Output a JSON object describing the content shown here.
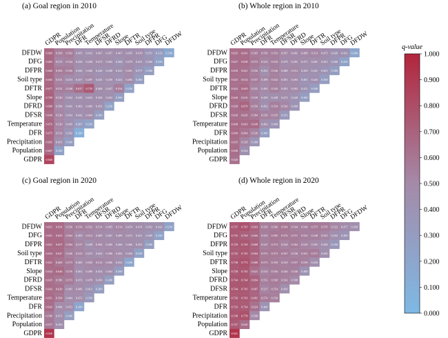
{
  "chart_data": {
    "type": "heatmap",
    "variables": [
      "GDPR",
      "Population",
      "Precipitation",
      "DFR",
      "Temperature",
      "DFSR",
      "DFRD",
      "Slope",
      "DFTR",
      "Soil type",
      "DFPR",
      "DFG",
      "DFDW"
    ],
    "legend": {
      "title": "q-value",
      "range": [
        0,
        1
      ],
      "ticks": [
        "0.000",
        "0.100",
        "0.200",
        "0.300",
        "0.400",
        "0.500",
        "0.600",
        "0.700",
        "0.800",
        "0.900",
        "1.000"
      ],
      "color_low": "#7db9e5",
      "color_mid": "#a58aa8",
      "color_high": "#b2253c",
      "placement": "right"
    },
    "panels": [
      {
        "title": "(a) Goal region in 2010",
        "matrix": [
          [
            0.84
          ],
          [
            0.667,
            0.25
          ],
          [
            0.665,
            0.451,
            0.3
          ],
          [
            0.675,
            0.513,
            0.392,
            0.1
          ],
          [
            0.676,
            0.52,
            0.445,
            0.307,
            0.25
          ],
          [
            0.64,
            0.52,
            0.454,
            0.442,
            0.464,
            0.3
          ],
          [
            0.68,
            0.506,
            0.441,
            0.463,
            0.469,
            0.452,
            0.25
          ],
          [
            0.7,
            0.52,
            0.454,
            0.445,
            0.454,
            0.456,
            0.452,
            0.3
          ],
          [
            0.677,
            0.552,
            0.548,
            0.637,
            0.735,
            0.468,
            0.457,
            0.554,
            0.25
          ],
          [
            0.665,
            0.531,
            0.474,
            0.457,
            0.497,
            0.433,
            0.459,
            0.421,
            0.494,
            0.3
          ],
          [
            0.66,
            0.565,
            0.556,
            0.45,
            0.468,
            0.426,
            0.438,
            0.441,
            0.491,
            0.377,
            0.3
          ],
          [
            0.665,
            0.513,
            0.534,
            0.456,
            0.458,
            0.473,
            0.465,
            0.406,
            0.479,
            0.431,
            0.4,
            0.25
          ],
          [
            0.669,
            0.56,
            0.563,
            0.455,
            0.452,
            0.467,
            0.457,
            0.467,
            0.455,
            0.47,
            0.371,
            0.313,
            0.18
          ]
        ]
      },
      {
        "title": "(b) Whole region in 2010",
        "matrix": [
          [
            0.62
          ],
          [
            0.638,
            0.434
          ],
          [
            0.635,
            0.528,
            0.388
          ],
          [
            0.649,
            0.604,
            0.536,
            0.3
          ],
          [
            0.648,
            0.643,
            0.649,
            0.462,
            0.4
          ],
          [
            0.63,
            0.62,
            0.584,
            0.539,
            0.535,
            0.351
          ],
          [
            0.63,
            0.679,
            0.55,
            0.452,
            0.554,
            0.52,
            0.4
          ],
          [
            0.64,
            0.616,
            0.539,
            0.458,
            0.448,
            0.472,
            0.42,
            0.3
          ],
          [
            0.624,
            0.649,
            0.531,
            0.492,
            0.545,
            0.492,
            0.492,
            0.411,
            0.3
          ],
          [
            0.625,
            0.614,
            0.557,
            0.499,
            0.542,
            0.491,
            0.493,
            0.401,
            0.445,
            0.3
          ],
          [
            0.63,
            0.621,
            0.556,
            0.452,
            0.546,
            0.488,
            0.512,
            0.45,
            0.441,
            0.401,
            0.3
          ],
          [
            0.627,
            0.638,
            0.573,
            0.523,
            0.543,
            0.479,
            0.491,
            0.471,
            0.461,
            0.451,
            0.4,
            0.25
          ],
          [
            0.635,
            0.641,
            0.565,
            0.556,
            0.553,
            0.507,
            0.491,
            0.499,
            0.514,
            0.475,
            0.426,
            0.431,
            0.2
          ]
        ]
      },
      {
        "title": "(c) Goal region in 2020",
        "matrix": [
          [
            0.92
          ],
          [
            0.577,
            0.45
          ],
          [
            0.58,
            0.471,
            0.3
          ],
          [
            0.642,
            0.484,
            0.472,
            0.2
          ],
          [
            0.651,
            0.594,
            0.464,
            0.472,
            0.35
          ],
          [
            0.642,
            0.62,
            0.491,
            0.486,
            0.413,
            0.3
          ],
          [
            0.635,
            0.586,
            0.573,
            0.473,
            0.478,
            0.45,
            0.3
          ],
          [
            0.634,
            0.646,
            0.576,
            0.461,
            0.49,
            0.454,
            0.464,
            0.3
          ],
          [
            0.651,
            0.6,
            0.573,
            0.485,
            0.502,
            0.513,
            0.496,
            0.452,
            0.2
          ],
          [
            0.654,
            0.647,
            0.546,
            0.523,
            0.475,
            0.462,
            0.496,
            0.482,
            0.456,
            0.25
          ],
          [
            0.651,
            0.657,
            0.584,
            0.517,
            0.448,
            0.494,
            0.485,
            0.466,
            0.466,
            0.451,
            0.3
          ],
          [
            0.651,
            0.655,
            0.564,
            0.493,
            0.514,
            0.489,
            0.467,
            0.489,
            0.472,
            0.451,
            0.409,
            0.25
          ],
          [
            0.651,
            0.654,
            0.556,
            0.556,
            0.532,
            0.514,
            0.495,
            0.514,
            0.474,
            0.474,
            0.452,
            0.423,
            0.25
          ]
        ]
      },
      {
        "title": "(d) Whole region in 2020",
        "matrix": [
          [
            0.921
          ],
          [
            0.727,
            0.64
          ],
          [
            0.748,
            0.778,
            0.5
          ],
          [
            0.733,
            0.734,
            0.624,
            0.4
          ],
          [
            0.736,
            0.743,
            0.681,
            0.574,
            0.55
          ],
          [
            0.744,
            0.745,
            0.687,
            0.527,
            0.554,
            0.45
          ],
          [
            0.744,
            0.744,
            0.694,
            0.552,
            0.568,
            0.542,
            0.5
          ],
          [
            0.728,
            0.745,
            0.621,
            0.533,
            0.556,
            0.546,
            0.546,
            0.4
          ],
          [
            0.738,
            0.773,
            0.68,
            0.573,
            0.559,
            0.539,
            0.557,
            0.539,
            0.45
          ],
          [
            0.725,
            0.745,
            0.694,
            0.575,
            0.573,
            0.567,
            0.536,
            0.561,
            0.571,
            0.45
          ],
          [
            0.729,
            0.749,
            0.688,
            0.547,
            0.574,
            0.528,
            0.564,
            0.529,
            0.505,
            0.458,
            0.35
          ],
          [
            0.735,
            0.704,
            0.666,
            0.553,
            0.585,
            0.576,
            0.571,
            0.552,
            0.548,
            0.525,
            0.452,
            0.4
          ],
          [
            0.737,
            0.765,
            0.693,
            0.556,
            0.566,
            0.594,
            0.544,
            0.548,
            0.575,
            0.57,
            0.522,
            0.477,
            0.45
          ]
        ]
      }
    ]
  }
}
